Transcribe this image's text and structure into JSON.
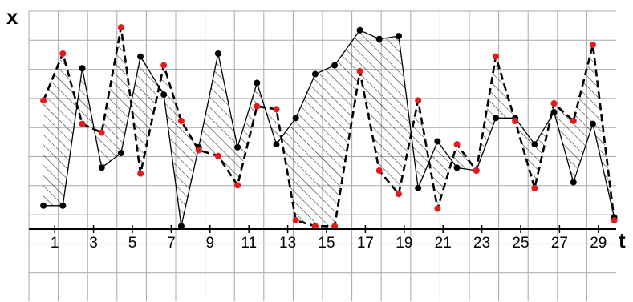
{
  "chart_data": {
    "type": "line",
    "title": "",
    "xlabel": "t",
    "ylabel": "x",
    "grid": true,
    "xlim": [
      0,
      31
    ],
    "ylim": [
      0,
      10
    ],
    "x_tick_labels": [
      "1",
      "3",
      "5",
      "7",
      "9",
      "11",
      "13",
      "15",
      "17",
      "19",
      "21",
      "23",
      "25",
      "27",
      "29"
    ],
    "x_tick_values": [
      1,
      3,
      5,
      7,
      9,
      11,
      13,
      15,
      17,
      19,
      21,
      23,
      25,
      27,
      29
    ],
    "shaded_between_series": true,
    "series": [
      {
        "style": "solid",
        "line_color": "#000000",
        "marker_color": "#000000",
        "points": [
          [
            0.5,
            0.8
          ],
          [
            1.5,
            0.8
          ],
          [
            2.5,
            5.5
          ],
          [
            3.5,
            2.1
          ],
          [
            4.5,
            2.6
          ],
          [
            5.5,
            5.9
          ],
          [
            6.7,
            4.6
          ],
          [
            7.6,
            0.1
          ],
          [
            8.5,
            2.8
          ],
          [
            9.5,
            6.0
          ],
          [
            10.5,
            2.8
          ],
          [
            11.5,
            5.0
          ],
          [
            12.5,
            2.9
          ],
          [
            13.5,
            3.8
          ],
          [
            14.5,
            5.3
          ],
          [
            15.5,
            5.6
          ],
          [
            16.8,
            6.8
          ],
          [
            17.8,
            6.5
          ],
          [
            18.8,
            6.6
          ],
          [
            19.8,
            1.4
          ],
          [
            20.8,
            3.0
          ],
          [
            21.8,
            2.1
          ],
          [
            22.8,
            2.0
          ],
          [
            23.8,
            3.8
          ],
          [
            24.8,
            3.8
          ],
          [
            25.8,
            2.9
          ],
          [
            26.8,
            4.0
          ],
          [
            27.8,
            1.6
          ],
          [
            28.8,
            3.6
          ],
          [
            29.9,
            0.4
          ]
        ]
      },
      {
        "style": "dashed",
        "line_color": "#000000",
        "marker_color": "#e41a1c",
        "points": [
          [
            0.5,
            4.4
          ],
          [
            1.5,
            6.0
          ],
          [
            2.5,
            3.6
          ],
          [
            3.5,
            3.3
          ],
          [
            4.5,
            6.9
          ],
          [
            5.5,
            1.9
          ],
          [
            6.7,
            5.6
          ],
          [
            7.6,
            3.7
          ],
          [
            8.5,
            2.7
          ],
          [
            9.5,
            2.5
          ],
          [
            10.5,
            1.5
          ],
          [
            11.5,
            4.2
          ],
          [
            12.5,
            4.1
          ],
          [
            13.5,
            0.3
          ],
          [
            14.5,
            0.1
          ],
          [
            15.5,
            0.1
          ],
          [
            16.8,
            5.4
          ],
          [
            17.8,
            2.0
          ],
          [
            18.8,
            1.2
          ],
          [
            19.8,
            4.4
          ],
          [
            20.8,
            0.7
          ],
          [
            21.8,
            2.9
          ],
          [
            22.8,
            2.0
          ],
          [
            23.8,
            5.9
          ],
          [
            24.8,
            3.7
          ],
          [
            25.8,
            1.4
          ],
          [
            26.8,
            4.3
          ],
          [
            27.8,
            3.7
          ],
          [
            28.8,
            6.3
          ],
          [
            29.9,
            0.3
          ]
        ]
      }
    ]
  }
}
